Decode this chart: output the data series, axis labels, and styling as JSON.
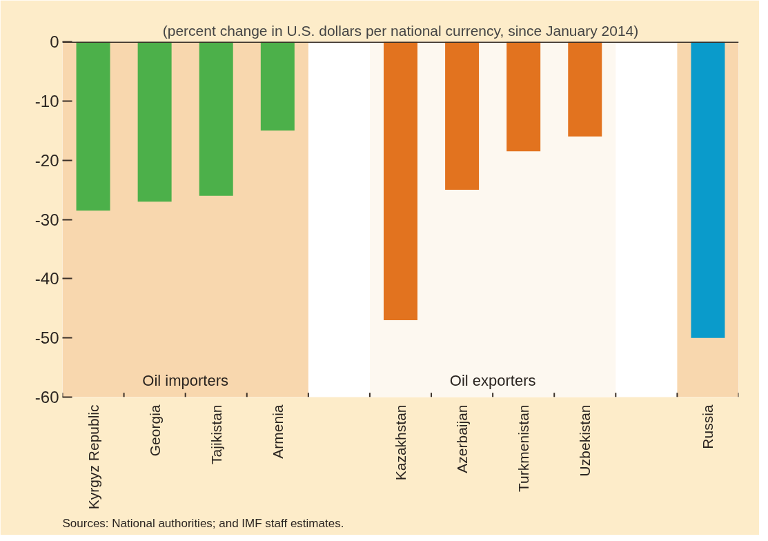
{
  "chart_data": {
    "type": "bar",
    "title": "(percent change in U.S. dollars per national currency, since January 2014)",
    "categories": [
      "Kyrgyz Republic",
      "Georgia",
      "Tajikistan",
      "Armenia",
      null,
      "Kazakhstan",
      "Azerbaijan",
      "Turkmenistan",
      "Uzbekistan",
      null,
      "Russia"
    ],
    "values": [
      -28.5,
      -27,
      -26,
      -15,
      null,
      -47,
      -25,
      -18.5,
      -16,
      null,
      -50
    ],
    "colors": [
      "#4cb04a",
      "#4cb04a",
      "#4cb04a",
      "#4cb04a",
      "#4cb04a",
      "#e2731f",
      "#e2731f",
      "#e2731f",
      "#e2731f",
      "#e2731f",
      "#0a9bcb"
    ],
    "ylim": [
      -60,
      0
    ],
    "yticks": [
      0,
      -10,
      -20,
      -30,
      -40,
      -50,
      -60
    ],
    "grid": false,
    "bands": [
      {
        "axis": "x",
        "from": "Kyrgyz Republic",
        "to": "Armenia",
        "label": "Oil importers",
        "color": "#f8d7ae"
      },
      {
        "axis": "x",
        "from": "Kazakhstan",
        "to": "Uzbekistan",
        "label": "Oil exporters",
        "color": "#fdf8f0"
      },
      {
        "axis": "x",
        "from": "Russia",
        "to": "Russia",
        "color": "#f8d7ae"
      }
    ],
    "ref_lines": [
      {
        "axis": "y",
        "value": 0,
        "color": "#3a3028"
      }
    ],
    "annotations": [
      "Sources: National authorities; and IMF staff estimates."
    ]
  }
}
